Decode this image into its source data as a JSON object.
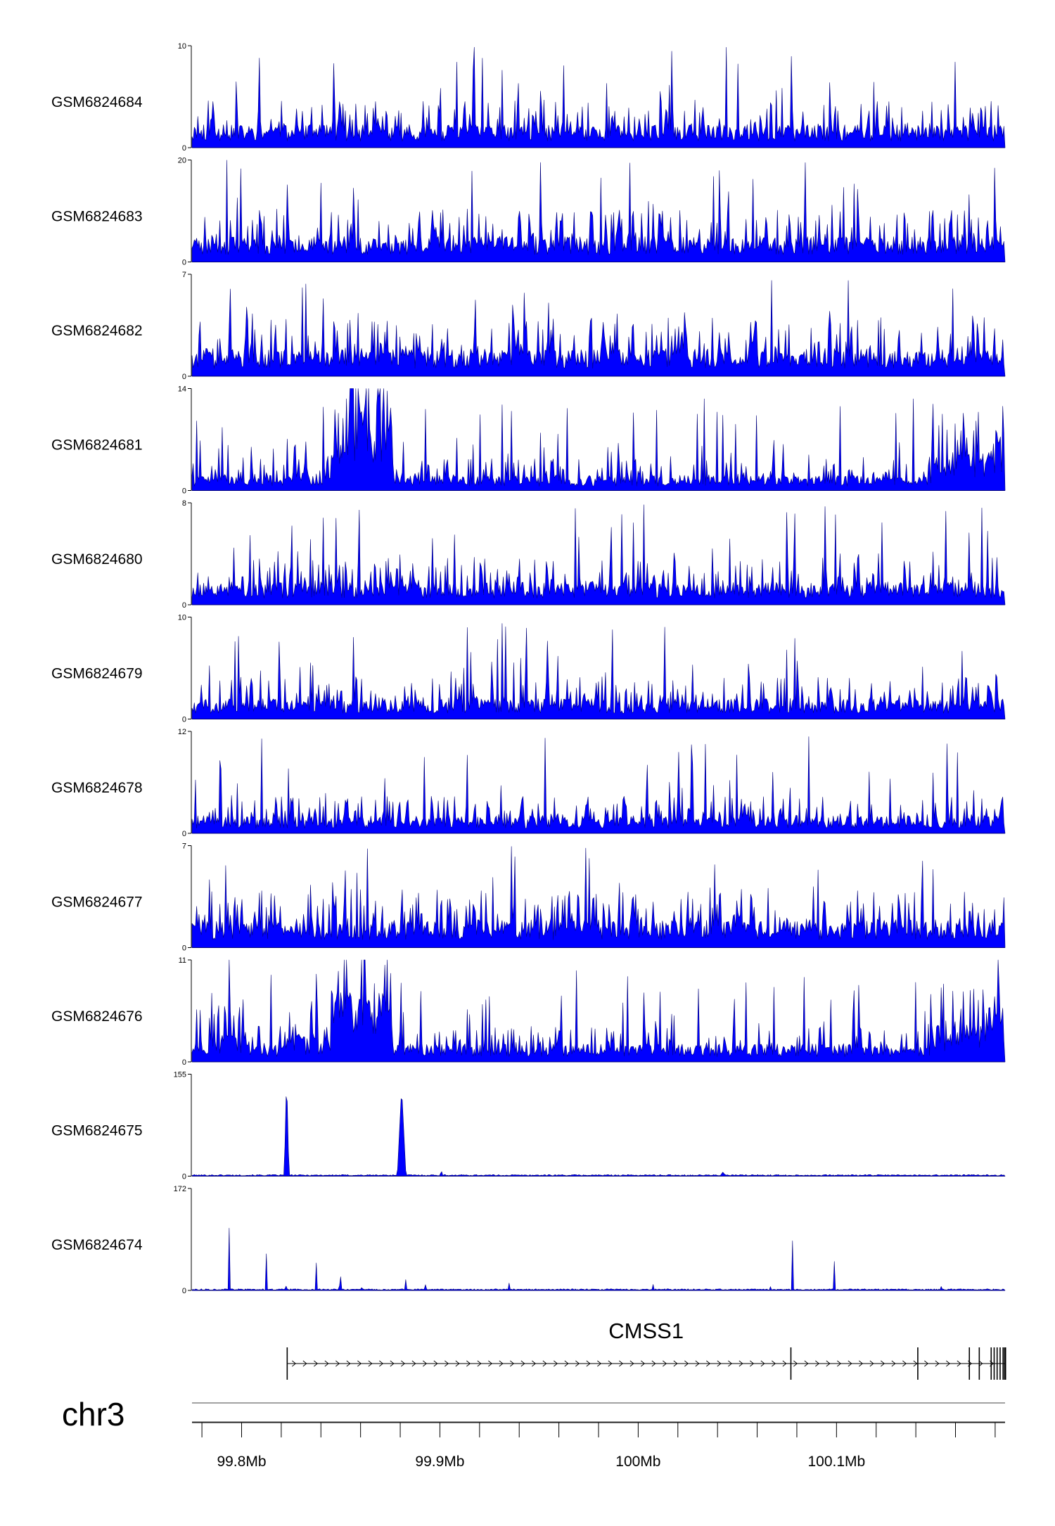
{
  "chart_data": {
    "type": "area",
    "chromosome": "chr3",
    "x_range_bp": [
      99775000,
      100185000
    ],
    "color": "#0000ff",
    "outline_color": "#00007a",
    "tracks": [
      {
        "name": "GSM6824684",
        "ymax": 10,
        "ymax_label": "10",
        "ymin_label": "0",
        "profile": "noise",
        "base": 0.18,
        "spike": 1.0,
        "seed": 11
      },
      {
        "name": "GSM6824683",
        "ymax": 20,
        "ymax_label": "20",
        "ymin_label": "0",
        "profile": "noise",
        "base": 0.2,
        "spike": 1.0,
        "seed": 23
      },
      {
        "name": "GSM6824682",
        "ymax": 7,
        "ymax_label": "7",
        "ymin_label": "0",
        "profile": "noise",
        "base": 0.22,
        "spike": 0.95,
        "seed": 37
      },
      {
        "name": "GSM6824681",
        "ymax": 14,
        "ymax_label": "14",
        "ymin_label": "0",
        "profile": "broad",
        "base": 0.12,
        "spike": 0.9,
        "seed": 41,
        "regions": [
          [
            99825000,
            99835000,
            0.22
          ],
          [
            99823000,
            99850000,
            0.12
          ],
          [
            99845000,
            99850000,
            0.55
          ],
          [
            99850000,
            99874000,
            0.75
          ],
          [
            99874000,
            99877000,
            0.65
          ],
          [
            100150000,
            100185000,
            0.3
          ],
          [
            100178000,
            100185000,
            0.45
          ]
        ]
      },
      {
        "name": "GSM6824680",
        "ymax": 8,
        "ymax_label": "8",
        "ymin_label": "0",
        "profile": "noise",
        "base": 0.18,
        "spike": 1.0,
        "seed": 53
      },
      {
        "name": "GSM6824679",
        "ymax": 10,
        "ymax_label": "10",
        "ymin_label": "0",
        "profile": "noise",
        "base": 0.16,
        "spike": 0.95,
        "seed": 67
      },
      {
        "name": "GSM6824678",
        "ymax": 12,
        "ymax_label": "12",
        "ymin_label": "0",
        "profile": "noise",
        "base": 0.14,
        "spike": 0.95,
        "seed": 71
      },
      {
        "name": "GSM6824677",
        "ymax": 7,
        "ymax_label": "7",
        "ymin_label": "0",
        "profile": "noise",
        "base": 0.22,
        "spike": 1.0,
        "seed": 83
      },
      {
        "name": "GSM6824676",
        "ymax": 11,
        "ymax_label": "11",
        "ymin_label": "0",
        "profile": "broad",
        "base": 0.14,
        "spike": 0.9,
        "seed": 97,
        "regions": [
          [
            99775000,
            99800000,
            0.22
          ],
          [
            99791000,
            99796000,
            0.45
          ],
          [
            99823000,
            99845000,
            0.2
          ],
          [
            99845000,
            99876000,
            0.55
          ],
          [
            100150000,
            100185000,
            0.3
          ],
          [
            100175000,
            100185000,
            0.45
          ]
        ]
      },
      {
        "name": "GSM6824675",
        "ymax": 155,
        "ymax_label": "155",
        "ymin_label": "0",
        "profile": "peaks",
        "base": 0.012,
        "seed": 101,
        "peaks": [
          [
            99823000,
            1.0,
            1200
          ],
          [
            99881000,
            0.87,
            2200
          ],
          [
            99901000,
            0.07,
            600
          ],
          [
            100043000,
            0.04,
            1500
          ]
        ]
      },
      {
        "name": "GSM6824674",
        "ymax": 172,
        "ymax_label": "172",
        "ymin_label": "0",
        "profile": "peaks",
        "base": 0.012,
        "seed": 113,
        "peaks": [
          [
            99794000,
            0.68,
            300
          ],
          [
            99813000,
            0.97,
            300
          ],
          [
            99823000,
            0.17,
            300
          ],
          [
            99838000,
            0.3,
            300
          ],
          [
            99850000,
            0.54,
            300
          ],
          [
            99861000,
            0.06,
            300
          ],
          [
            99883000,
            0.13,
            300
          ],
          [
            99893000,
            0.06,
            300
          ],
          [
            99935000,
            0.16,
            300
          ],
          [
            100008000,
            0.12,
            300
          ],
          [
            100067000,
            0.04,
            300
          ],
          [
            100078000,
            0.7,
            300
          ],
          [
            100099000,
            0.63,
            300
          ],
          [
            100153000,
            0.05,
            300
          ]
        ]
      }
    ],
    "gene": {
      "name": "CMSS1",
      "start": 99823000,
      "end": 100185000,
      "strand": "+",
      "exons": [
        99823000,
        100077000,
        100141000,
        100167000,
        100172000,
        100178000,
        100179500,
        100181000,
        100182500,
        100184000,
        100185000
      ]
    },
    "axis": {
      "ticks_bp": [
        99780000,
        99800000,
        99820000,
        99840000,
        99860000,
        99880000,
        99900000,
        99920000,
        99940000,
        99960000,
        99980000,
        100000000,
        100020000,
        100040000,
        100060000,
        100080000,
        100100000,
        100120000,
        100140000,
        100160000,
        100180000
      ],
      "labels": [
        {
          "bp": 99800000,
          "text": "99.8Mb"
        },
        {
          "bp": 99900000,
          "text": "99.9Mb"
        },
        {
          "bp": 100000000,
          "text": "100Mb"
        },
        {
          "bp": 100100000,
          "text": "100.1Mb"
        }
      ]
    }
  }
}
